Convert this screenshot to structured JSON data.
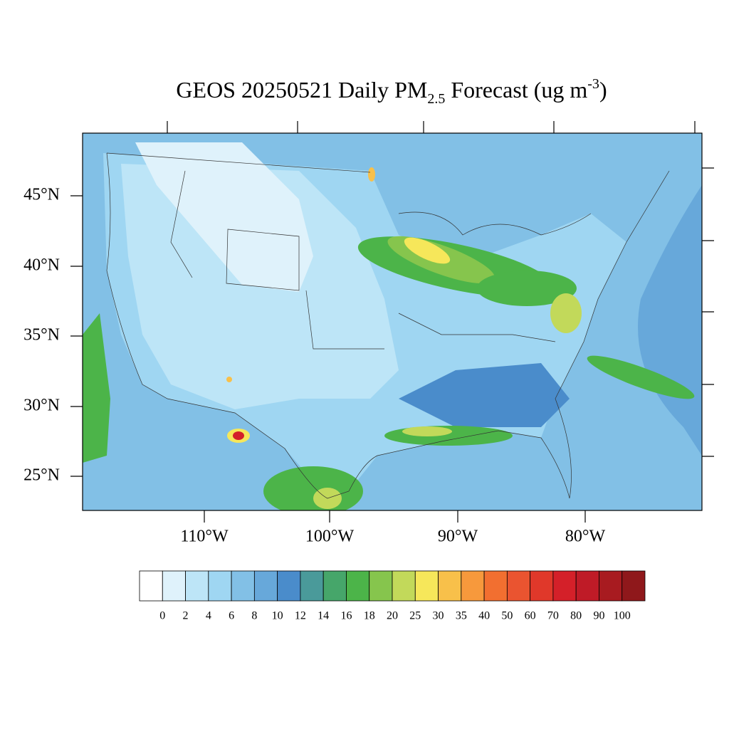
{
  "title": {
    "main": "GEOS 20250521 Daily PM",
    "subscript": "2.5",
    "middle": " Forecast (ug m",
    "superscript": "-3",
    "end": ")"
  },
  "map": {
    "lat_labels": [
      "45°N",
      "40°N",
      "35°N",
      "30°N",
      "25°N"
    ],
    "lon_labels": [
      "110°W",
      "100°W",
      "90°W",
      "80°W"
    ]
  },
  "colorbar": {
    "levels": [
      0,
      2,
      4,
      6,
      8,
      10,
      12,
      14,
      16,
      18,
      20,
      25,
      30,
      35,
      40,
      50,
      60,
      70,
      80,
      90,
      100
    ],
    "colors": [
      "#ffffff",
      "#dff2fb",
      "#bde5f7",
      "#9fd6f2",
      "#82c0e6",
      "#67a8da",
      "#4a8ccb",
      "#4a9a9a",
      "#46a66a",
      "#4cb449",
      "#86c54d",
      "#c2d95a",
      "#f6e75a",
      "#f8c04a",
      "#f7993c",
      "#f26f30",
      "#ea5430",
      "#e0382a",
      "#d42029",
      "#bf1b27",
      "#a81b20",
      "#8f181b"
    ]
  }
}
